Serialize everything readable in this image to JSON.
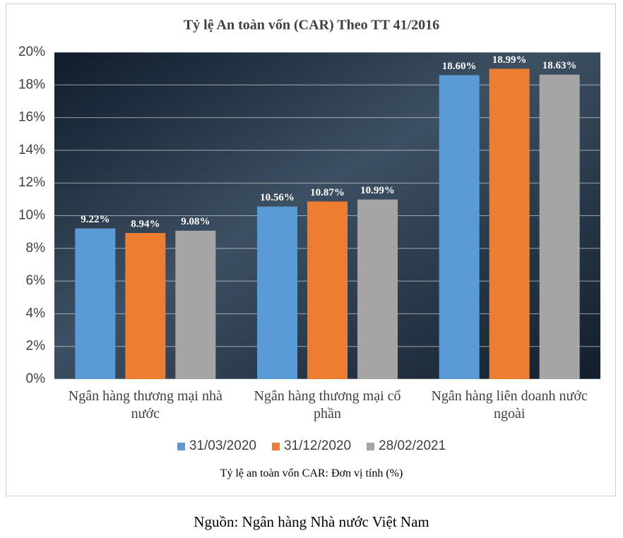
{
  "chart_data": {
    "type": "bar",
    "title": "Tỷ lệ An toàn vốn (CAR) Theo TT 41/2016",
    "subtitle": "Tỷ lệ an toàn vốn CAR: Đơn vị tính (%)",
    "source": "Nguồn: Ngân hàng Nhà nước Việt Nam",
    "categories": [
      "Ngân hàng thương mại nhà nước",
      "Ngân hàng thương mại cổ phần",
      "Ngân hàng liên doanh nước ngoài"
    ],
    "series": [
      {
        "name": "31/03/2020",
        "color": "#5b9bd5",
        "values": [
          9.22,
          10.56,
          18.6
        ],
        "value_labels": [
          "9.22%",
          "10.56%",
          "18.60%"
        ]
      },
      {
        "name": "31/12/2020",
        "color": "#ed7d31",
        "values": [
          8.94,
          10.87,
          18.99
        ],
        "value_labels": [
          "8.94%",
          "10.87%",
          "18.99%"
        ]
      },
      {
        "name": "28/02/2021",
        "color": "#a5a5a5",
        "values": [
          9.08,
          10.99,
          18.63
        ],
        "value_labels": [
          "9.08%",
          "10.99%",
          "18.63%"
        ]
      }
    ],
    "ylim": [
      0,
      20
    ],
    "yticks": [
      {
        "value": 0,
        "label": "0%"
      },
      {
        "value": 2,
        "label": "2%"
      },
      {
        "value": 4,
        "label": "4%"
      },
      {
        "value": 6,
        "label": "6%"
      },
      {
        "value": 8,
        "label": "8%"
      },
      {
        "value": 10,
        "label": "10%"
      },
      {
        "value": 12,
        "label": "12%"
      },
      {
        "value": 14,
        "label": "14%"
      },
      {
        "value": 16,
        "label": "16%"
      },
      {
        "value": 18,
        "label": "18%"
      },
      {
        "value": 20,
        "label": "20%"
      }
    ],
    "grid": true,
    "legend": "bottom"
  }
}
